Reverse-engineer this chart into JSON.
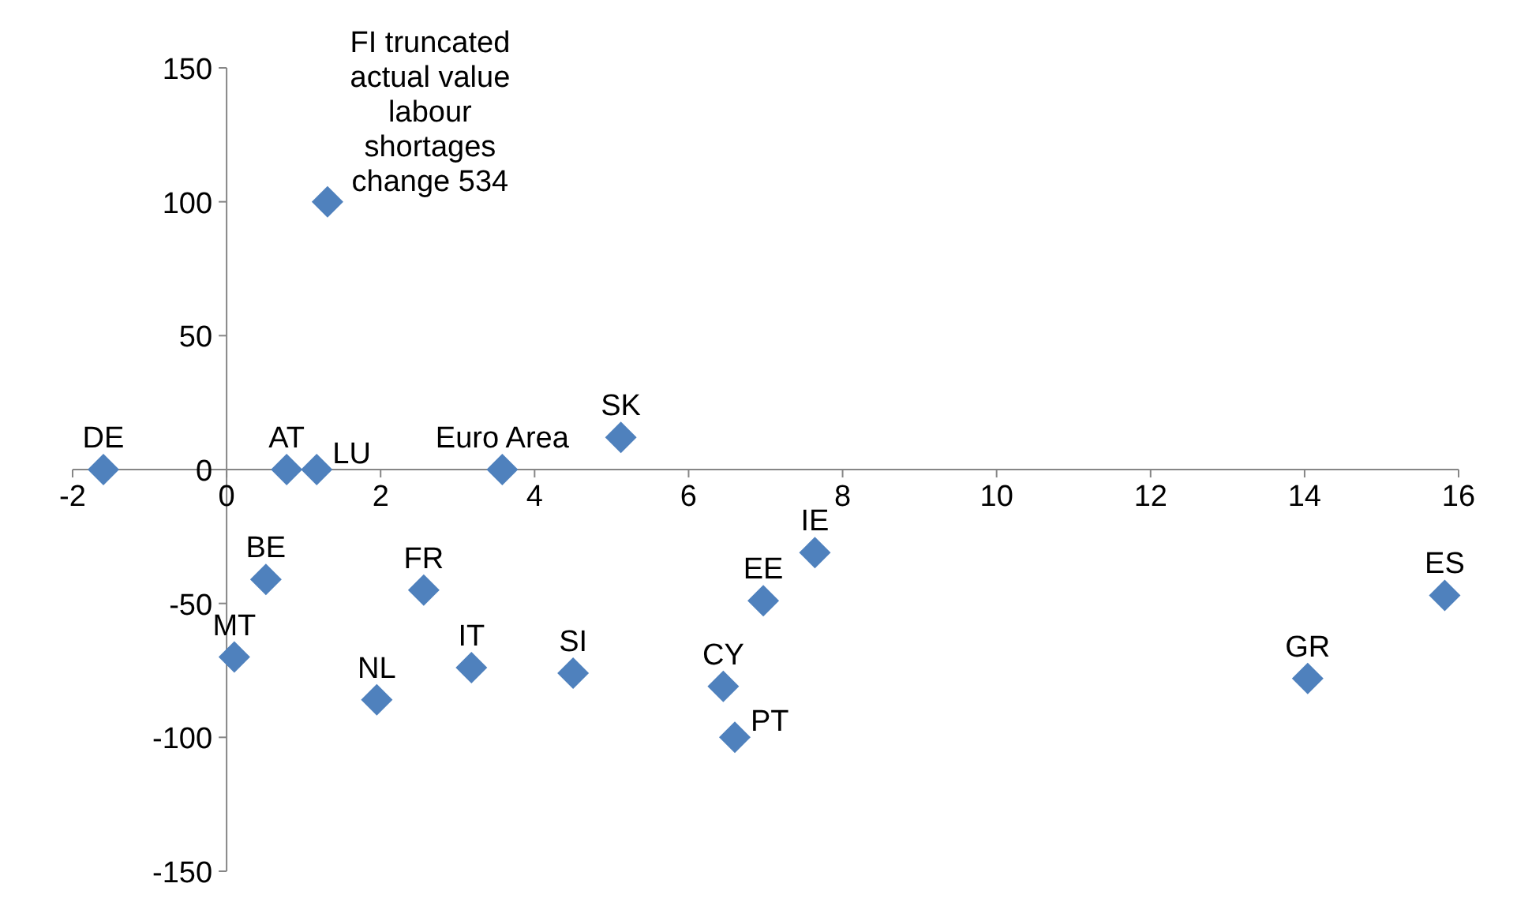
{
  "chart_data": {
    "type": "scatter",
    "marker": "diamond",
    "grid": false,
    "x": [
      -1.6,
      0.78,
      1.17,
      3.58,
      5.12,
      1.31,
      0.51,
      0.1,
      1.95,
      2.56,
      3.18,
      4.5,
      6.45,
      6.6,
      6.97,
      7.64,
      14.04,
      15.82
    ],
    "series": [
      {
        "color": "#4f81bd",
        "values": [
          0,
          0,
          0,
          0,
          12,
          100,
          -41,
          -70,
          -86,
          -45,
          -74,
          -76,
          -81,
          -100,
          -49,
          -31,
          -78,
          -47
        ]
      }
    ],
    "value_labels": [
      "DE",
      "AT",
      "LU",
      "Euro Area",
      "SK",
      null,
      "BE",
      "MT",
      "NL",
      "FR",
      "IT",
      "SI",
      "CY",
      "PT",
      "EE",
      "IE",
      "GR",
      "ES"
    ],
    "xlim": [
      -2,
      16
    ],
    "xticks": [
      -2,
      0,
      2,
      4,
      6,
      8,
      10,
      12,
      14,
      16
    ],
    "ylim": [
      -150,
      150
    ],
    "yticks": [
      -150,
      -100,
      -50,
      0,
      50,
      100,
      150
    ],
    "annotations": [
      {
        "text": "FI truncated actual value labour shortages change 534",
        "x": 1.31,
        "y": 100
      }
    ]
  }
}
